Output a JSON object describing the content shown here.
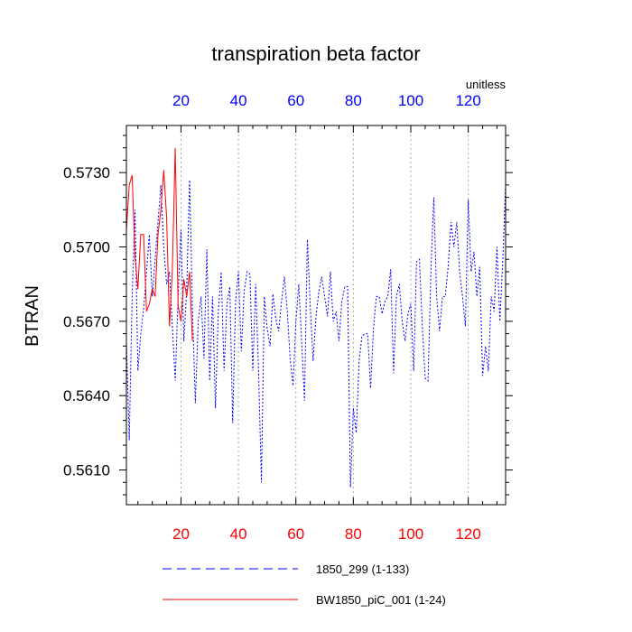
{
  "chart_data": {
    "type": "line",
    "title": "transpiration beta factor",
    "ylabel": "BTRAN",
    "units": "unitless",
    "xlim": [
      1,
      133
    ],
    "ylim": [
      0.5596,
      0.5749
    ],
    "grid": "vertical dotted at x ticks",
    "legend_position": "bottom",
    "x_ticks": [
      20,
      40,
      60,
      80,
      100,
      120
    ],
    "x_tick_labels": [
      "20",
      "40",
      "60",
      "80",
      "100",
      "120"
    ],
    "y_ticks": [
      0.561,
      0.564,
      0.567,
      0.57,
      0.573
    ],
    "y_tick_labels": [
      "0.5610",
      "0.5640",
      "0.5670",
      "0.5700",
      "0.5730"
    ],
    "colors": {
      "series_1": "#0000ff",
      "series_2": "#ff0000",
      "bottom_ticks": "#ff0000",
      "top_ticks": "#0000ff"
    },
    "series": [
      {
        "name": "1850_299 (1-133)",
        "style": "dashed",
        "color": "#0000ff",
        "x_start": 1,
        "values": [
          0.5662,
          0.5622,
          0.568,
          0.5715,
          0.565,
          0.5665,
          0.5675,
          0.569,
          0.5705,
          0.568,
          0.5695,
          0.571,
          0.5725,
          0.57,
          0.5685,
          0.569,
          0.5668,
          0.5646,
          0.568,
          0.5707,
          0.5662,
          0.5683,
          0.5727,
          0.5675,
          0.5637,
          0.567,
          0.568,
          0.5655,
          0.5699,
          0.5646,
          0.568,
          0.5635,
          0.5674,
          0.569,
          0.565,
          0.5677,
          0.5684,
          0.5629,
          0.5678,
          0.569,
          0.5658,
          0.5682,
          0.569,
          0.5689,
          0.565,
          0.5685,
          0.565,
          0.5605,
          0.568,
          0.5667,
          0.566,
          0.5681,
          0.5671,
          0.5666,
          0.5678,
          0.5688,
          0.5674,
          0.5655,
          0.5644,
          0.567,
          0.5685,
          0.5662,
          0.5638,
          0.5703,
          0.5676,
          0.5654,
          0.5672,
          0.5682,
          0.5688,
          0.568,
          0.5672,
          0.569,
          0.567,
          0.5674,
          0.5662,
          0.5678,
          0.5684,
          0.5684,
          0.5603,
          0.5635,
          0.5625,
          0.5654,
          0.5664,
          0.5665,
          0.5665,
          0.5643,
          0.5667,
          0.568,
          0.568,
          0.5673,
          0.5678,
          0.568,
          0.5691,
          0.5649,
          0.568,
          0.5685,
          0.567,
          0.5662,
          0.5673,
          0.5677,
          0.565,
          0.5694,
          0.5695,
          0.5668,
          0.5647,
          0.5646,
          0.569,
          0.572,
          0.568,
          0.5666,
          0.568,
          0.568,
          0.5692,
          0.571,
          0.57,
          0.571,
          0.569,
          0.568,
          0.5668,
          0.5719,
          0.569,
          0.5698,
          0.568,
          0.5692,
          0.5648,
          0.566,
          0.565,
          0.568,
          0.5674,
          0.57,
          0.567,
          0.5694,
          0.5725
        ]
      },
      {
        "name": "BW1850_piC_001 (1-24)",
        "style": "solid",
        "color": "#ff0000",
        "x_start": 1,
        "values": [
          0.5707,
          0.5725,
          0.5729,
          0.5696,
          0.5683,
          0.5705,
          0.5705,
          0.5674,
          0.5677,
          0.5683,
          0.568,
          0.5705,
          0.5715,
          0.5731,
          0.5712,
          0.5668,
          0.5691,
          0.574,
          0.5676,
          0.567,
          0.5687,
          0.568,
          0.569,
          0.5662
        ]
      }
    ]
  }
}
